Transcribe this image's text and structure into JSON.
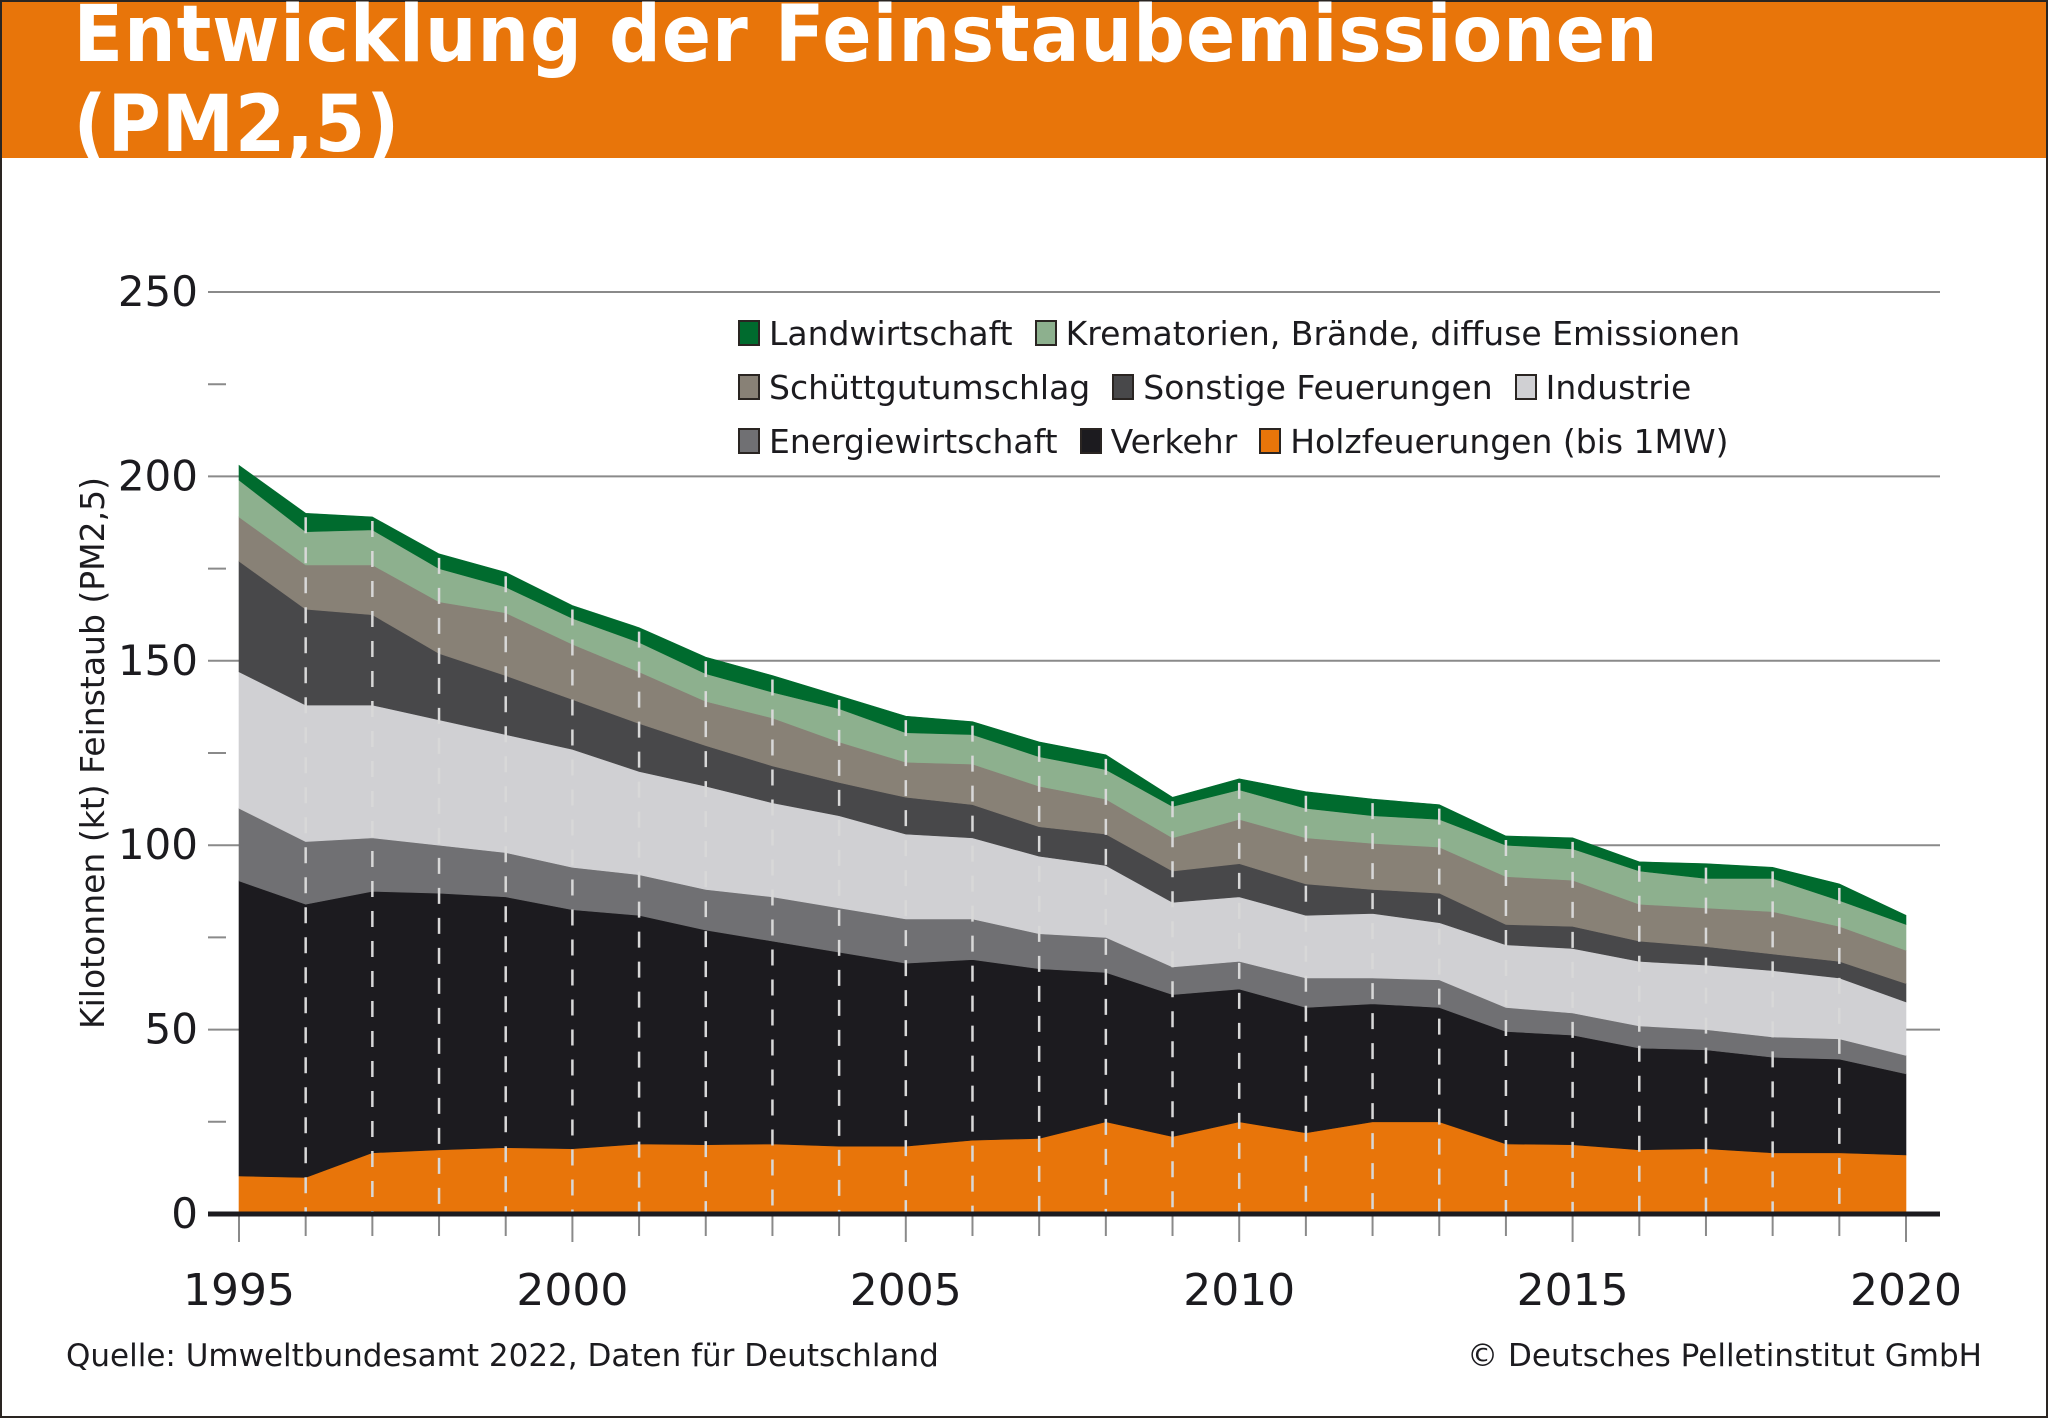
{
  "header": {
    "title": "Entwicklung der Feinstaubemissionen (PM2,5)"
  },
  "footer": {
    "source": "Quelle: Umweltbundesamt 2022, Daten für Deutschland",
    "copyright": "© Deutsches Pelletinstitut GmbH"
  },
  "chart_data": {
    "type": "area",
    "stacked": true,
    "title": "Entwicklung der Feinstaubemissionen (PM2,5)",
    "xlabel": "",
    "ylabel": "Kilotonnen (kt) Feinstaub (PM2,5)",
    "ylim": [
      0,
      250
    ],
    "yticks": [
      0,
      50,
      100,
      150,
      200,
      250
    ],
    "ytick_labels": [
      "0",
      "50",
      "100",
      "150",
      "200",
      "250"
    ],
    "y_minor_ticks": [
      25,
      75,
      125,
      175,
      225
    ],
    "xlim": [
      1995,
      2020
    ],
    "xticks": [
      1995,
      2000,
      2005,
      2010,
      2015,
      2020
    ],
    "xtick_labels": [
      "1995",
      "2000",
      "2005",
      "2010",
      "2015",
      "2020"
    ],
    "grid": "horizontal at major y ticks; dashed vertical lines at each year",
    "legend_position": "top-right",
    "x": [
      1995,
      1996,
      1997,
      1998,
      1999,
      2000,
      2001,
      2002,
      2003,
      2004,
      2005,
      2006,
      2007,
      2008,
      2009,
      2010,
      2011,
      2012,
      2013,
      2014,
      2015,
      2016,
      2017,
      2018,
      2019,
      2020
    ],
    "series": [
      {
        "name": "Holzfeuerungen (bis 1MW)",
        "color": "#e8750a",
        "values": [
          10.3,
          9.9,
          16.6,
          17.4,
          18.0,
          17.7,
          19.0,
          18.8,
          19.0,
          18.4,
          18.4,
          20.0,
          20.5,
          25.0,
          21.0,
          25.0,
          22.0,
          25.0,
          25.0,
          19.0,
          18.8,
          17.4,
          17.7,
          16.6,
          16.6,
          16.0
        ]
      },
      {
        "name": "Verkehr",
        "color": "#1c1b1f",
        "values": [
          80.0,
          74.1,
          70.9,
          69.6,
          68.0,
          64.8,
          62.0,
          58.2,
          55.0,
          52.6,
          49.6,
          49.0,
          46.0,
          40.5,
          38.5,
          36.0,
          34.0,
          32.0,
          31.0,
          30.5,
          29.7,
          27.6,
          26.8,
          25.9,
          25.4,
          22.0
        ]
      },
      {
        "name": "Energiewirtschaft",
        "color": "#707073",
        "values": [
          19.7,
          17.0,
          14.5,
          13.0,
          12.0,
          11.5,
          11.0,
          11.0,
          12.0,
          12.0,
          12.0,
          11.0,
          9.5,
          9.5,
          7.5,
          7.5,
          8.0,
          7.0,
          7.5,
          6.5,
          6.0,
          6.0,
          5.5,
          5.5,
          5.5,
          5.0
        ]
      },
      {
        "name": "Industrie",
        "color": "#d0d0d3",
        "values": [
          37.0,
          37.0,
          36.0,
          34.0,
          32.0,
          32.0,
          28.0,
          28.0,
          25.5,
          25.0,
          23.0,
          22.0,
          21.0,
          19.5,
          17.5,
          17.5,
          17.0,
          17.5,
          15.5,
          17.0,
          17.5,
          17.5,
          17.5,
          18.0,
          16.5,
          14.5
        ]
      },
      {
        "name": "Sonstige Feuerungen",
        "color": "#48484a",
        "values": [
          30.0,
          26.0,
          24.5,
          18.0,
          16.0,
          13.5,
          13.0,
          11.0,
          10.0,
          9.0,
          10.0,
          9.0,
          8.0,
          8.5,
          8.5,
          9.0,
          8.5,
          6.5,
          8.0,
          5.5,
          6.0,
          5.5,
          5.0,
          4.5,
          4.5,
          5.0
        ]
      },
      {
        "name": "Schüttgutumschlag",
        "color": "#888176",
        "values": [
          12.0,
          12.0,
          13.5,
          14.0,
          17.0,
          15.0,
          14.0,
          12.0,
          13.0,
          11.0,
          9.5,
          11.0,
          11.0,
          9.5,
          9.0,
          12.0,
          12.5,
          12.5,
          12.5,
          13.0,
          12.5,
          10.0,
          10.5,
          11.5,
          9.5,
          9.0
        ]
      },
      {
        "name": "Krematorien, Brände, diffuse Emissionen",
        "color": "#8db08e",
        "values": [
          10.0,
          9.0,
          9.5,
          9.0,
          7.0,
          7.0,
          8.0,
          7.5,
          7.0,
          9.0,
          8.0,
          8.0,
          8.0,
          8.0,
          8.5,
          8.0,
          8.0,
          7.5,
          7.5,
          8.5,
          8.5,
          9.0,
          8.0,
          9.0,
          7.0,
          7.0
        ]
      },
      {
        "name": "Landwirtschaft",
        "color": "#006b2e",
        "values": [
          4.0,
          5.0,
          3.5,
          4.0,
          4.0,
          3.5,
          4.0,
          4.5,
          4.5,
          3.5,
          4.5,
          3.5,
          4.0,
          4.0,
          2.5,
          3.0,
          4.5,
          4.5,
          4.0,
          2.5,
          3.0,
          2.5,
          4.0,
          3.0,
          4.5,
          2.5
        ]
      }
    ],
    "legend": {
      "rows": [
        [
          "Landwirtschaft",
          "Krematorien, Brände, diffuse Emissionen"
        ],
        [
          "Schüttgutumschlag",
          "Sonstige Feuerungen",
          "Industrie"
        ],
        [
          "Energiewirtschaft",
          "Verkehr",
          "Holzfeuerungen (bis 1MW)"
        ]
      ]
    }
  }
}
